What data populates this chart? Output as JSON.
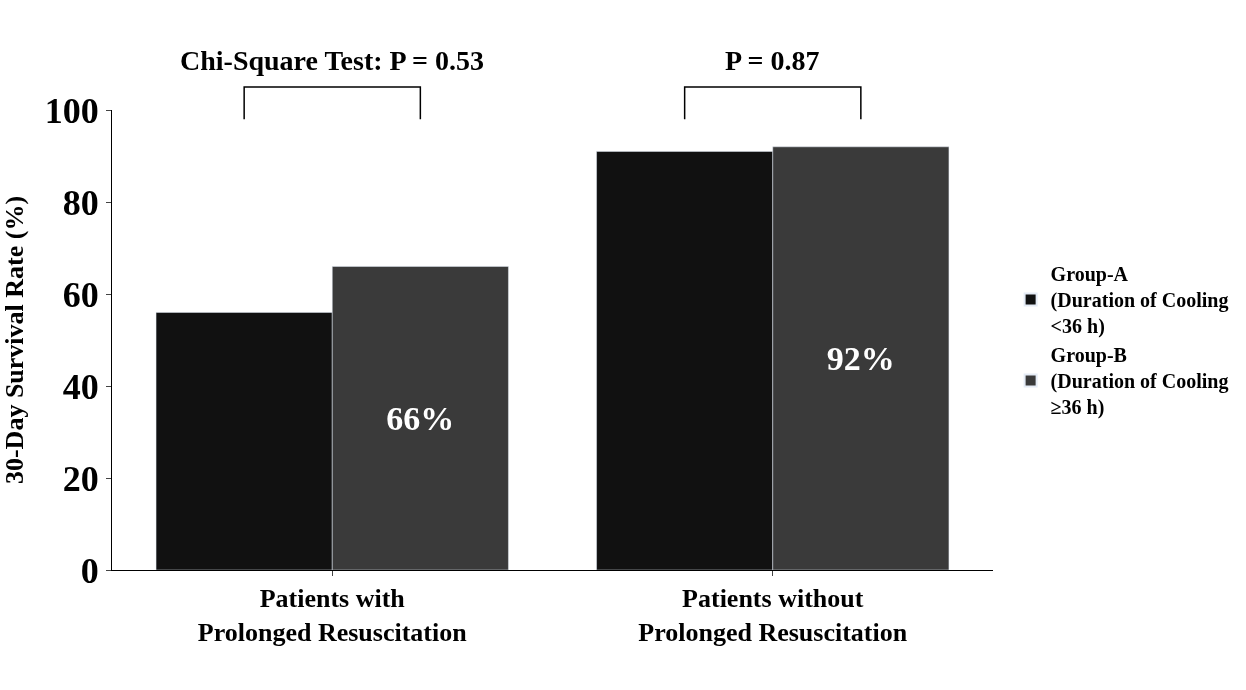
{
  "chart_data": {
    "type": "bar",
    "ylabel": "30-Day Survival Rate (%)",
    "categories": [
      "Patients with\nProlonged Resuscitation",
      "Patients without\nProlonged Resuscitation"
    ],
    "series": [
      {
        "name": "Group-A\n(Duration of Cooling\n<36 h)",
        "color": "#111111",
        "values": [
          56,
          91
        ],
        "value_labels": [
          null,
          null
        ]
      },
      {
        "name": "Group-B\n(Duration of Cooling\n≥36 h)",
        "color": "#3a3a3a",
        "values": [
          66,
          92
        ],
        "value_labels": [
          "66%",
          "92%"
        ]
      }
    ],
    "annotations": [
      "Chi-Square Test: P = 0.53",
      "P = 0.87"
    ],
    "ylim": [
      0,
      100
    ],
    "yticks": [
      0,
      20,
      40,
      60,
      80,
      100
    ],
    "legend": "right"
  }
}
